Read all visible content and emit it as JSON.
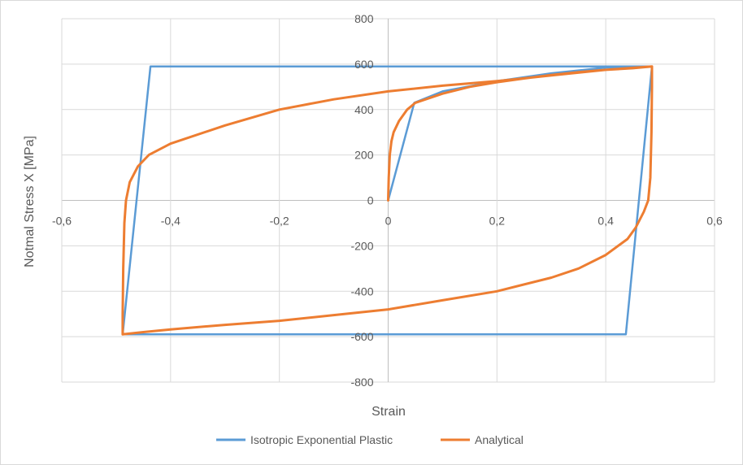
{
  "chart_data": {
    "type": "line",
    "title": "",
    "xlabel": "Strain",
    "ylabel": "Notmal Stress X [MPa]",
    "xlim": [
      -0.6,
      0.6
    ],
    "ylim": [
      -800,
      800
    ],
    "x_ticks": [
      -0.6,
      -0.4,
      -0.2,
      0,
      0.2,
      0.4,
      0.6
    ],
    "x_tick_labels": [
      "-0,6",
      "-0,4",
      "-0,2",
      "0",
      "0,2",
      "0,4",
      "0,6"
    ],
    "y_ticks": [
      -800,
      -600,
      -400,
      -200,
      0,
      200,
      400,
      600,
      800
    ],
    "y_tick_labels": [
      "-800",
      "-600",
      "-400",
      "-200",
      "0",
      "200",
      "400",
      "600",
      "800"
    ],
    "grid": true,
    "legend_position": "bottom",
    "series": [
      {
        "name": "Isotropic Exponential Plastic",
        "color": "#5b9bd5",
        "points": [
          [
            0,
            0
          ],
          [
            0.048,
            430
          ],
          [
            0.1,
            480
          ],
          [
            0.2,
            525
          ],
          [
            0.3,
            560
          ],
          [
            0.4,
            585
          ],
          [
            0.485,
            590
          ],
          [
            0.437,
            -590
          ],
          [
            -0.488,
            -590
          ],
          [
            -0.437,
            590
          ],
          [
            0.485,
            590
          ]
        ]
      },
      {
        "name": "Analytical",
        "color": "#ed7d31",
        "points": [
          [
            0,
            0
          ],
          [
            0.001,
            100
          ],
          [
            0.003,
            200
          ],
          [
            0.006,
            260
          ],
          [
            0.01,
            300
          ],
          [
            0.02,
            350
          ],
          [
            0.035,
            400
          ],
          [
            0.05,
            430
          ],
          [
            0.1,
            470
          ],
          [
            0.15,
            500
          ],
          [
            0.2,
            520
          ],
          [
            0.25,
            537
          ],
          [
            0.3,
            552
          ],
          [
            0.35,
            565
          ],
          [
            0.4,
            575
          ],
          [
            0.45,
            582
          ],
          [
            0.485,
            590
          ],
          [
            0.485,
            500
          ],
          [
            0.484,
            300
          ],
          [
            0.482,
            100
          ],
          [
            0.478,
            0
          ],
          [
            0.47,
            -50
          ],
          [
            0.455,
            -120
          ],
          [
            0.44,
            -170
          ],
          [
            0.4,
            -240
          ],
          [
            0.35,
            -300
          ],
          [
            0.3,
            -340
          ],
          [
            0.2,
            -400
          ],
          [
            0.1,
            -440
          ],
          [
            0,
            -480
          ],
          [
            -0.1,
            -505
          ],
          [
            -0.2,
            -530
          ],
          [
            -0.3,
            -548
          ],
          [
            -0.4,
            -568
          ],
          [
            -0.45,
            -580
          ],
          [
            -0.488,
            -590
          ],
          [
            -0.488,
            -500
          ],
          [
            -0.487,
            -300
          ],
          [
            -0.485,
            -100
          ],
          [
            -0.482,
            0
          ],
          [
            -0.475,
            80
          ],
          [
            -0.46,
            150
          ],
          [
            -0.44,
            200
          ],
          [
            -0.4,
            250
          ],
          [
            -0.3,
            330
          ],
          [
            -0.2,
            400
          ],
          [
            -0.1,
            445
          ],
          [
            0,
            480
          ],
          [
            0.1,
            505
          ],
          [
            0.2,
            525
          ],
          [
            0.3,
            550
          ],
          [
            0.4,
            575
          ],
          [
            0.485,
            590
          ]
        ]
      }
    ]
  }
}
